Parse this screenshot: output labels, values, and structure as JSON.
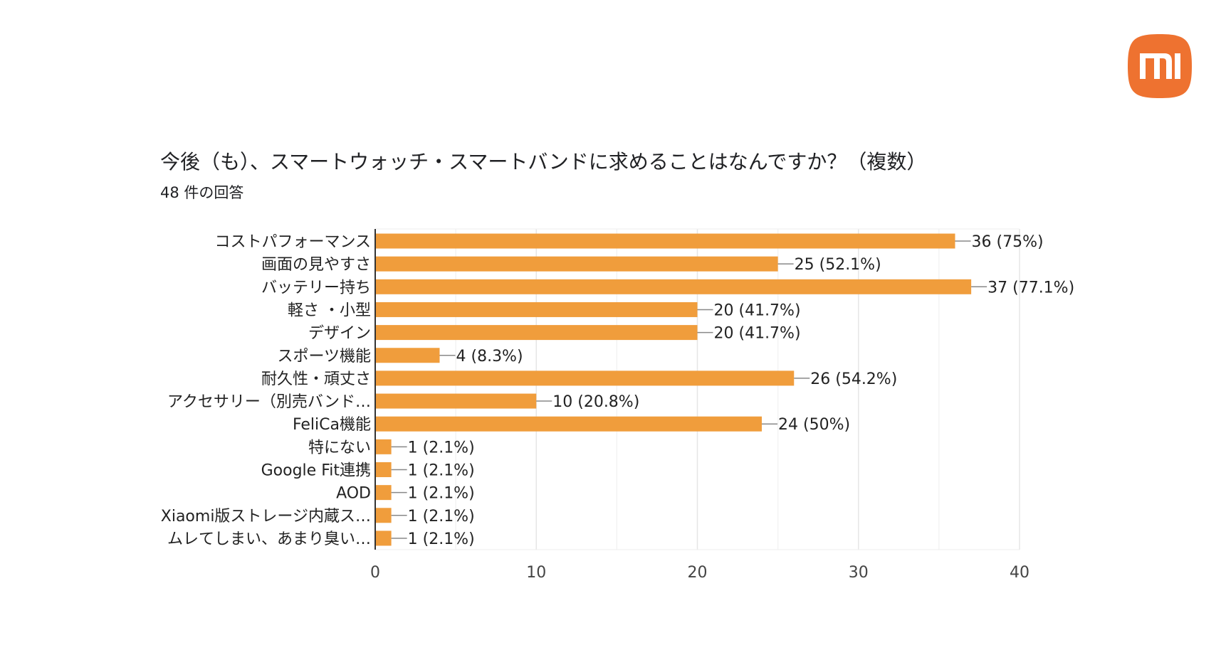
{
  "logo": {
    "text": "mi",
    "color": "#EE7230"
  },
  "chart_data": {
    "type": "bar",
    "orientation": "horizontal",
    "title": "今後（も）、スマートウォッチ・スマートバンドに求めることはなんですか？（複数）",
    "subtitle": "48 件の回答",
    "categories": [
      "コストパフォーマンス",
      "画面の見やすさ",
      "バッテリー持ち",
      "軽さ ・小型",
      "デザイン",
      "スポーツ機能",
      "耐久性・頑丈さ",
      "アクセサリー（別売バンド…",
      "FeliCa機能",
      "特にない",
      "Google Fit連携",
      "AOD",
      "Xiaomi版ストレージ内蔵ス…",
      "ムレてしまい、あまり臭い…"
    ],
    "values": [
      36,
      25,
      37,
      20,
      20,
      4,
      26,
      10,
      24,
      1,
      1,
      1,
      1,
      1
    ],
    "data_labels": [
      "36 (75%)",
      "25 (52.1%)",
      "37 (77.1%)",
      "20 (41.7%)",
      "20 (41.7%)",
      "4 (8.3%)",
      "26 (54.2%)",
      "10 (20.8%)",
      "24 (50%)",
      "1 (2.1%)",
      "1 (2.1%)",
      "1 (2.1%)",
      "1 (2.1%)",
      "1 (2.1%)"
    ],
    "xlim": [
      0,
      40
    ],
    "xticks": [
      "0",
      "10",
      "20",
      "30",
      "40"
    ],
    "xlabel": "",
    "ylabel": "",
    "grid": true,
    "bar_color": "#F09D3C"
  }
}
